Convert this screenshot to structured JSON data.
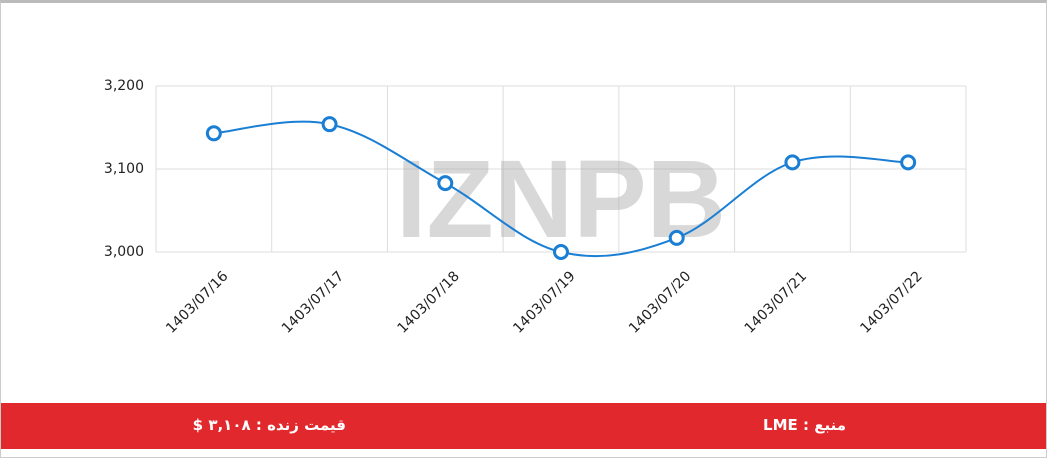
{
  "chart_data": {
    "type": "line",
    "categories": [
      "1403/07/16",
      "1403/07/17",
      "1403/07/18",
      "1403/07/19",
      "1403/07/20",
      "1403/07/21",
      "1403/07/22"
    ],
    "series": [
      {
        "name": "LME",
        "color": "#1a7fd4",
        "values": [
          3143,
          3154,
          3083,
          3000,
          3017,
          3108,
          3108
        ]
      }
    ],
    "ylim": [
      3000,
      3200
    ],
    "yticks": [
      {
        "value": 3000,
        "label": "3,000"
      },
      {
        "value": 3100,
        "label": "3,100"
      },
      {
        "value": 3200,
        "label": "3,200"
      }
    ],
    "grid": true,
    "watermark": "IZNPB"
  },
  "footer": {
    "price": "قیمت زنده : ۳,۱۰۸ $",
    "source": "منبع : LME"
  }
}
